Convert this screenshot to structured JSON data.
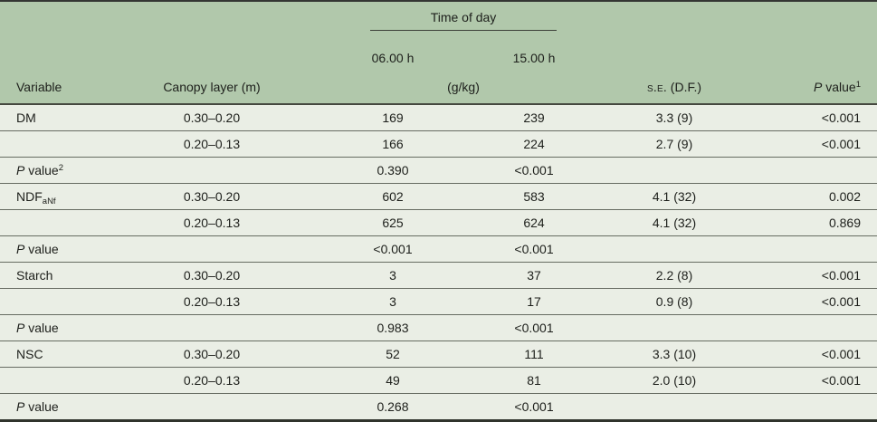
{
  "colors": {
    "header_bg": "#b1c8ab",
    "body_bg": "#eaeee5",
    "text": "#1d1f1b",
    "row_separator": "#676c62",
    "outer_border": "#30342c"
  },
  "table": {
    "header": {
      "time_of_day": "Time of day",
      "col_06": "06.00 h",
      "col_15": "15.00 h",
      "variable": "Variable",
      "canopy": "Canopy layer (m)",
      "unit": "(g/kg)",
      "se_label": "s.e.",
      "se_df": " (D.F.)",
      "p_label_italic": "P",
      "p_label_rest": " value",
      "p_sup": "1"
    },
    "rows": [
      {
        "variable": {
          "text": "DM"
        },
        "canopy": "0.30–0.20",
        "h06": "169",
        "h15": "239",
        "se": "3.3 (9)",
        "p": "<0.001"
      },
      {
        "variable": null,
        "canopy": "0.20–0.13",
        "h06": "166",
        "h15": "224",
        "se": "2.7 (9)",
        "p": "<0.001"
      },
      {
        "variable": {
          "italic": "P",
          "text": " value",
          "sup": "2"
        },
        "canopy": "",
        "h06": "0.390",
        "h15": "<0.001",
        "se": "",
        "p": ""
      },
      {
        "variable": {
          "text": "NDF",
          "sub": "aNf"
        },
        "canopy": "0.30–0.20",
        "h06": "602",
        "h15": "583",
        "se": "4.1 (32)",
        "p": "0.002"
      },
      {
        "variable": null,
        "canopy": "0.20–0.13",
        "h06": "625",
        "h15": "624",
        "se": "4.1 (32)",
        "p": "0.869"
      },
      {
        "variable": {
          "italic": "P",
          "text": " value"
        },
        "canopy": "",
        "h06": "<0.001",
        "h15": "<0.001",
        "se": "",
        "p": ""
      },
      {
        "variable": {
          "text": "Starch"
        },
        "canopy": "0.30–0.20",
        "h06": "3",
        "h15": "37",
        "se": "2.2 (8)",
        "p": "<0.001"
      },
      {
        "variable": null,
        "canopy": "0.20–0.13",
        "h06": "3",
        "h15": "17",
        "se": "0.9 (8)",
        "p": "<0.001"
      },
      {
        "variable": {
          "italic": "P",
          "text": " value"
        },
        "canopy": "",
        "h06": "0.983",
        "h15": "<0.001",
        "se": "",
        "p": ""
      },
      {
        "variable": {
          "text": "NSC"
        },
        "canopy": "0.30–0.20",
        "h06": "52",
        "h15": "111",
        "se": "3.3 (10)",
        "p": "<0.001"
      },
      {
        "variable": null,
        "canopy": "0.20–0.13",
        "h06": "49",
        "h15": "81",
        "se": "2.0 (10)",
        "p": "<0.001"
      },
      {
        "variable": {
          "italic": "P",
          "text": " value"
        },
        "canopy": "",
        "h06": "0.268",
        "h15": "<0.001",
        "se": "",
        "p": ""
      }
    ]
  }
}
